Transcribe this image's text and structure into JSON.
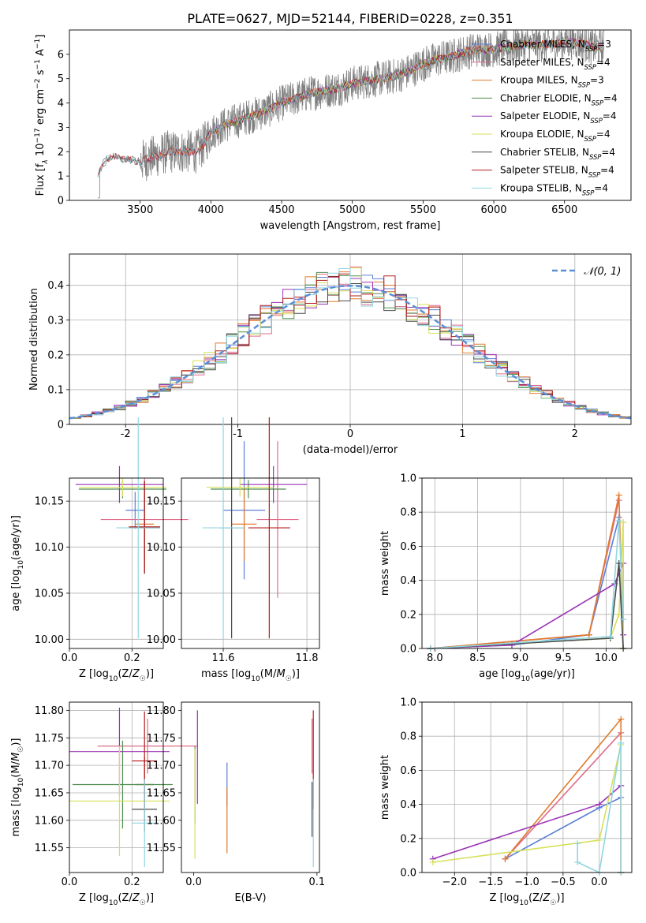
{
  "title": "PLATE=0627, MJD=52144, FIBERID=0228, z=0.351",
  "colors": {
    "Chabrier MILES": "#5a7fd6",
    "Salpeter MILES": "#e06b8b",
    "Kroupa MILES": "#e07b2e",
    "Chabrier ELODIE": "#4f8f4f",
    "Salpeter ELODIE": "#9b33b5",
    "Kroupa ELODIE": "#d6e05a",
    "Chabrier STELIB": "#4a4a4a",
    "Salpeter STELIB": "#b31b1b",
    "Kroupa STELIB": "#8fd6e0",
    "data": "#808080",
    "normal_curve": "#5a8fd6"
  },
  "chart_data": [
    {
      "id": "spectrum",
      "type": "line",
      "title": "PLATE=0627, MJD=52144, FIBERID=0228, z=0.351",
      "xlabel": "wavelength [Angstrom, rest frame]",
      "ylabel": "Flux [f_λ 10^-17 erg cm^-2 s^-1 A^-1]",
      "xlim": [
        3000,
        6970
      ],
      "ylim": [
        0,
        7
      ],
      "xticks": [
        3500,
        4000,
        4500,
        5000,
        5500,
        6000,
        6500
      ],
      "yticks": [
        0,
        1,
        2,
        3,
        4,
        5,
        6
      ],
      "continuum_x": [
        3200,
        3250,
        3300,
        3400,
        3500,
        3600,
        3700,
        3800,
        3900,
        3950,
        4000,
        4100,
        4200,
        4300,
        4400,
        4500,
        4600,
        4700,
        4800,
        4900,
        5000,
        5100,
        5200,
        5300,
        5400,
        5500,
        5600,
        5700,
        5800,
        5900,
        6000,
        6100,
        6200,
        6300,
        6400,
        6500,
        6600,
        6700,
        6780
      ],
      "continuum_y": [
        1.0,
        1.6,
        1.8,
        1.7,
        1.6,
        1.8,
        2.0,
        2.0,
        2.0,
        2.3,
        2.8,
        3.1,
        3.3,
        3.5,
        3.7,
        4.0,
        4.2,
        4.4,
        4.5,
        4.6,
        4.8,
        4.9,
        5.0,
        5.1,
        5.3,
        5.6,
        5.8,
        5.9,
        6.1,
        6.2,
        6.2,
        6.3,
        6.4,
        6.4,
        6.4,
        6.5,
        6.5,
        6.3,
        6.3
      ],
      "legend": [
        "Chabrier MILES, N_SSP=3",
        "Salpeter MILES, N_SSP=4",
        "Kroupa MILES, N_SSP=3",
        "Chabrier ELODIE, N_SSP=4",
        "Salpeter ELODIE, N_SSP=4",
        "Kroupa ELODIE, N_SSP=4",
        "Chabrier STELIB, N_SSP=4",
        "Salpeter STELIB, N_SSP=4",
        "Kroupa STELIB, N_SSP=4"
      ],
      "legend_position": "right",
      "grid": false
    },
    {
      "id": "residuals",
      "type": "line",
      "xlabel": "(data-model)/error",
      "ylabel": "Normed distribution",
      "xlim": [
        -2.5,
        2.5
      ],
      "ylim": [
        0,
        0.49
      ],
      "xticks": [
        -2,
        -1,
        0,
        1,
        2
      ],
      "yticks": [
        0.0,
        0.1,
        0.2,
        0.3,
        0.4
      ],
      "normal_label": "𝒩(0, 1)",
      "legend_position": "upper right",
      "grid": true,
      "bins": [
        -2.5,
        -2.4,
        -2.3,
        -2.2,
        -2.1,
        -2.0,
        -1.9,
        -1.8,
        -1.7,
        -1.6,
        -1.5,
        -1.4,
        -1.3,
        -1.2,
        -1.1,
        -1.0,
        -0.9,
        -0.8,
        -0.7,
        -0.6,
        -0.5,
        -0.4,
        -0.3,
        -0.2,
        -0.1,
        0.0,
        0.1,
        0.2,
        0.3,
        0.4,
        0.5,
        0.6,
        0.7,
        0.8,
        0.9,
        1.0,
        1.1,
        1.2,
        1.3,
        1.4,
        1.5,
        1.6,
        1.7,
        1.8,
        1.9,
        2.0,
        2.1,
        2.2,
        2.3,
        2.4
      ]
    },
    {
      "id": "age_vs_Z",
      "type": "scatter",
      "xlabel": "Z [log10(Z/Z☉)]",
      "ylabel": "age [log10(age/yr)]",
      "xlim": [
        0.0,
        0.3
      ],
      "ylim": [
        9.99,
        10.175
      ],
      "xticks": [
        "0.0",
        "0.2"
      ],
      "yticks": [
        "10.00",
        "10.05",
        "10.10",
        "10.15"
      ],
      "grid": true,
      "points": [
        {
          "model": "Chabrier MILES",
          "x": 0.21,
          "y": 10.14,
          "xerr": 0.03,
          "yerr": 0.02
        },
        {
          "model": "Salpeter MILES",
          "x": 0.24,
          "y": 10.13,
          "xerr": 0.14,
          "yerr": 0.045
        },
        {
          "model": "Kroupa MILES",
          "x": 0.24,
          "y": 10.125,
          "xerr": 0.03,
          "yerr": 0.045
        },
        {
          "model": "Chabrier ELODIE",
          "x": 0.17,
          "y": 10.163,
          "xerr": 0.14,
          "yerr": 0.01
        },
        {
          "model": "Salpeter ELODIE",
          "x": 0.16,
          "y": 10.168,
          "xerr": 0.14,
          "yerr": 0.02
        },
        {
          "model": "Kroupa ELODIE",
          "x": 0.17,
          "y": 10.165,
          "xerr": 0.14,
          "yerr": 0.01
        },
        {
          "model": "Chabrier STELIB",
          "x": 0.24,
          "y": 10.121,
          "xerr": 0.05,
          "yerr": 0.05
        },
        {
          "model": "Salpeter STELIB",
          "x": 0.24,
          "y": 10.122,
          "xerr": 0.05,
          "yerr": 0.05
        },
        {
          "model": "Kroupa STELIB",
          "x": 0.22,
          "y": 10.121,
          "xerr": 0.07,
          "yerr": 0.12
        }
      ]
    },
    {
      "id": "age_vs_mass",
      "type": "scatter",
      "xlabel": "mass [log10(M/M☉)]",
      "ylabel": "",
      "xlim": [
        11.5,
        11.83
      ],
      "ylim": [
        9.99,
        10.175
      ],
      "xticks": [
        "11.6",
        "11.8"
      ],
      "yticks": [
        "10.00",
        "10.05",
        "10.10",
        "10.15"
      ],
      "grid": true,
      "points": [
        {
          "model": "Chabrier MILES",
          "x": 11.65,
          "y": 10.14,
          "xerr": 0.05,
          "yerr": 0.075
        },
        {
          "model": "Salpeter MILES",
          "x": 11.73,
          "y": 10.13,
          "xerr": 0.05,
          "yerr": 0.085
        },
        {
          "model": "Kroupa MILES",
          "x": 11.65,
          "y": 10.125,
          "xerr": 0.03,
          "yerr": 0.04
        },
        {
          "model": "Chabrier ELODIE",
          "x": 11.66,
          "y": 10.163,
          "xerr": 0.09,
          "yerr": 0.01
        },
        {
          "model": "Salpeter ELODIE",
          "x": 11.72,
          "y": 10.168,
          "xerr": 0.08,
          "yerr": 0.02
        },
        {
          "model": "Kroupa ELODIE",
          "x": 11.64,
          "y": 10.165,
          "xerr": 0.08,
          "yerr": 0.01
        },
        {
          "model": "Chabrier STELIB",
          "x": 11.62,
          "y": 10.121,
          "xerr": 0.03,
          "yerr": 0.12
        },
        {
          "model": "Salpeter STELIB",
          "x": 11.71,
          "y": 10.121,
          "xerr": 0.05,
          "yerr": 0.12
        },
        {
          "model": "Kroupa STELIB",
          "x": 11.6,
          "y": 10.121,
          "xerr": 0.05,
          "yerr": 0.12
        }
      ]
    },
    {
      "id": "weight_vs_age",
      "type": "line",
      "xlabel": "age [log10(age/yr)]",
      "ylabel": "mass weight",
      "xlim": [
        7.85,
        10.3
      ],
      "ylim": [
        0,
        1.0
      ],
      "xticks": [
        "8.0",
        "8.5",
        "9.0",
        "9.5",
        "10.0"
      ],
      "yticks": [
        "0.0",
        "0.2",
        "0.4",
        "0.6",
        "0.8",
        "1.0"
      ],
      "grid": true,
      "series": [
        {
          "model": "Chabrier MILES",
          "x": [
            7.95,
            8.9,
            9.8,
            10.15
          ],
          "y": [
            0.0,
            0.02,
            0.08,
            0.77
          ]
        },
        {
          "model": "Salpeter MILES",
          "x": [
            7.95,
            9.8,
            10.15
          ],
          "y": [
            0.0,
            0.08,
            0.87
          ]
        },
        {
          "model": "Kroupa MILES",
          "x": [
            7.95,
            9.8,
            10.15,
            10.2
          ],
          "y": [
            0.0,
            0.08,
            0.9,
            0.0
          ]
        },
        {
          "model": "Salpeter ELODIE",
          "x": [
            7.95,
            8.9,
            10.1,
            10.2,
            10.2
          ],
          "y": [
            0.0,
            0.02,
            0.38,
            0.5,
            0.08
          ]
        },
        {
          "model": "Kroupa ELODIE",
          "x": [
            7.95,
            10.05,
            10.15,
            10.2,
            10.2
          ],
          "y": [
            0.0,
            0.06,
            0.2,
            0.74,
            0.0
          ]
        },
        {
          "model": "Chabrier STELIB",
          "x": [
            7.95,
            10.05,
            10.15,
            10.2
          ],
          "y": [
            0.0,
            0.06,
            0.5,
            0.0
          ]
        },
        {
          "model": "Kroupa STELIB",
          "x": [
            7.95,
            10.05,
            10.15,
            10.2
          ],
          "y": [
            0.0,
            0.07,
            0.75,
            0.17
          ]
        }
      ]
    },
    {
      "id": "mass_vs_Z",
      "type": "scatter",
      "xlabel": "Z [log10(Z/Z☉)]",
      "ylabel": "mass [log10(M/M☉)]",
      "xlim": [
        0.0,
        0.3
      ],
      "ylim": [
        11.505,
        11.815
      ],
      "xticks": [
        "0.0",
        "0.2"
      ],
      "yticks": [
        "11.55",
        "11.60",
        "11.65",
        "11.70",
        "11.75",
        "11.80"
      ],
      "grid": true,
      "points": [
        {
          "model": "Chabrier MILES",
          "x": 0.24,
          "y": 11.665,
          "xerr": 0.03,
          "yerr": 0.05
        },
        {
          "model": "Salpeter MILES",
          "x": 0.25,
          "y": 11.735,
          "xerr": 0.16,
          "yerr": 0.05
        },
        {
          "model": "Kroupa MILES",
          "x": 0.24,
          "y": 11.665,
          "xerr": 0.03,
          "yerr": 0.05
        },
        {
          "model": "Chabrier ELODIE",
          "x": 0.17,
          "y": 11.665,
          "xerr": 0.16,
          "yerr": 0.08
        },
        {
          "model": "Salpeter ELODIE",
          "x": 0.16,
          "y": 11.725,
          "xerr": 0.16,
          "yerr": 0.08
        },
        {
          "model": "Kroupa ELODIE",
          "x": 0.16,
          "y": 11.635,
          "xerr": 0.16,
          "yerr": 0.1
        },
        {
          "model": "Chabrier STELIB",
          "x": 0.24,
          "y": 11.62,
          "xerr": 0.04,
          "yerr": 0.04
        },
        {
          "model": "Salpeter STELIB",
          "x": 0.24,
          "y": 11.708,
          "xerr": 0.04,
          "yerr": 0.09
        },
        {
          "model": "Kroupa STELIB",
          "x": 0.24,
          "y": 11.595,
          "xerr": 0.04,
          "yerr": 0.08
        }
      ]
    },
    {
      "id": "mass_vs_ebv",
      "type": "scatter",
      "xlabel": "E(B-V)",
      "ylabel": "",
      "xlim": [
        -0.01,
        0.102
      ],
      "ylim": [
        11.505,
        11.815
      ],
      "xticks": [
        "0.0",
        "0.1"
      ],
      "yticks": [
        "11.55",
        "11.60",
        "11.65",
        "11.70",
        "11.75",
        "11.80"
      ],
      "grid": false,
      "points": [
        {
          "model": "Chabrier MILES",
          "x": 0.027,
          "y": 11.665,
          "yerr": 0.04
        },
        {
          "model": "Salpeter MILES",
          "x": 0.096,
          "y": 11.735,
          "yerr": 0.05
        },
        {
          "model": "Kroupa MILES",
          "x": 0.027,
          "y": 11.6,
          "yerr": 0.06
        },
        {
          "model": "Chabrier ELODIE",
          "x": 0.001,
          "y": 11.665,
          "yerr": 0.07
        },
        {
          "model": "Salpeter ELODIE",
          "x": 0.003,
          "y": 11.715,
          "yerr": 0.085
        },
        {
          "model": "Kroupa ELODIE",
          "x": 0.001,
          "y": 11.63,
          "yerr": 0.1
        },
        {
          "model": "Chabrier STELIB",
          "x": 0.096,
          "y": 11.62,
          "yerr": 0.05
        },
        {
          "model": "Salpeter STELIB",
          "x": 0.097,
          "y": 11.71,
          "yerr": 0.09
        },
        {
          "model": "Kroupa STELIB",
          "x": 0.097,
          "y": 11.595,
          "yerr": 0.08
        }
      ]
    },
    {
      "id": "weight_vs_Z",
      "type": "line",
      "xlabel": "Z [log10(Z/Z☉)]",
      "ylabel": "mass weight",
      "xlim": [
        -2.45,
        0.45
      ],
      "ylim": [
        0,
        1.0
      ],
      "xticks": [
        "−2.0",
        "−1.5",
        "−1.0",
        "−0.5",
        "0.0"
      ],
      "yticks": [
        "0.0",
        "0.2",
        "0.4",
        "0.6",
        "0.8",
        "1.0"
      ],
      "grid": true,
      "series": [
        {
          "model": "Chabrier MILES",
          "x": [
            -1.3,
            0.0,
            0.3
          ],
          "y": [
            0.08,
            0.38,
            0.44
          ]
        },
        {
          "model": "Salpeter MILES",
          "x": [
            -1.3,
            0.3
          ],
          "y": [
            0.08,
            0.82
          ]
        },
        {
          "model": "Kroupa MILES",
          "x": [
            -1.3,
            0.3,
            0.3
          ],
          "y": [
            0.08,
            0.9,
            0.0
          ]
        },
        {
          "model": "Salpeter ELODIE",
          "x": [
            -2.3,
            0.0,
            0.3,
            0.3
          ],
          "y": [
            0.08,
            0.4,
            0.51,
            0.0
          ]
        },
        {
          "model": "Kroupa ELODIE",
          "x": [
            -2.3,
            0.0,
            0.3,
            0.3
          ],
          "y": [
            0.06,
            0.19,
            0.75,
            0.0
          ]
        },
        {
          "model": "Kroupa STELIB",
          "x": [
            -0.3,
            -0.3,
            0.0,
            0.3,
            0.3
          ],
          "y": [
            0.17,
            0.06,
            0.0,
            0.76,
            0.0
          ]
        }
      ]
    }
  ]
}
